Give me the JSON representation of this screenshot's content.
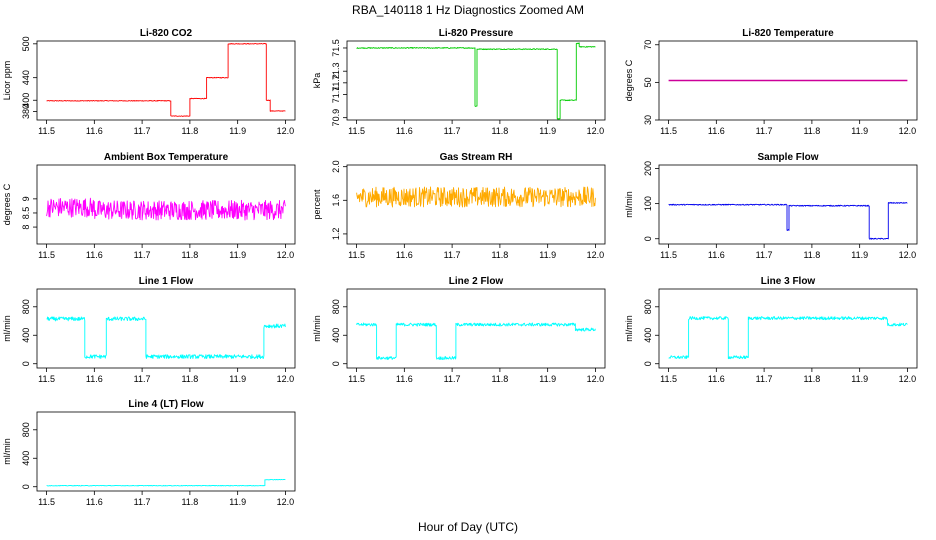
{
  "figure": {
    "title": "RBA_140118  1 Hz Diagnostics Zoomed AM",
    "xlabel": "Hour of Day (UTC)"
  },
  "chart_data": [
    {
      "type": "line",
      "title": "Li-820 CO2",
      "ylabel": "Licor ppm",
      "color": "#ff0000",
      "xlim": [
        11.48,
        12.02
      ],
      "ylim": [
        365,
        505
      ],
      "xticks": [
        "11.5",
        "11.6",
        "11.7",
        "11.8",
        "11.9",
        "12.0"
      ],
      "yticks": [
        "380",
        "400",
        "440",
        "500"
      ],
      "noise": 0.6,
      "segments": [
        {
          "x": [
            11.5,
            11.76
          ],
          "y": 399
        },
        {
          "x": [
            11.76,
            11.8
          ],
          "y": 372
        },
        {
          "x": [
            11.8,
            11.835
          ],
          "y": 403
        },
        {
          "x": [
            11.835,
            11.88
          ],
          "y": 440
        },
        {
          "x": [
            11.88,
            11.96
          ],
          "y": 500
        },
        {
          "x": [
            11.96,
            11.968
          ],
          "y": 400
        },
        {
          "x": [
            11.968,
            12.0
          ],
          "y": 381
        }
      ]
    },
    {
      "type": "line",
      "title": "Li-820 Pressure",
      "ylabel": "kPa",
      "color": "#00cc00",
      "xlim": [
        11.48,
        12.02
      ],
      "ylim": [
        70.88,
        71.56
      ],
      "xticks": [
        "11.5",
        "11.6",
        "11.7",
        "11.8",
        "11.9",
        "12.0"
      ],
      "yticks": [
        "70.9",
        "71.1",
        "71.2",
        "71.3",
        "71.5"
      ],
      "noise": 0.004,
      "segments": [
        {
          "x": [
            11.5,
            11.748
          ],
          "y": 71.5
        },
        {
          "x": [
            11.748,
            11.752
          ],
          "y": 71.0
        },
        {
          "x": [
            11.752,
            11.92
          ],
          "y": 71.49
        },
        {
          "x": [
            11.92,
            11.926
          ],
          "y": 70.89
        },
        {
          "x": [
            11.926,
            11.96
          ],
          "y": 71.05
        },
        {
          "x": [
            11.96,
            11.966
          ],
          "y": 71.54
        },
        {
          "x": [
            11.966,
            12.0
          ],
          "y": 71.51
        }
      ]
    },
    {
      "type": "line",
      "title": "Li-820 Temperature",
      "ylabel": "degrees C",
      "color": "#cc0099",
      "xlim": [
        11.48,
        12.02
      ],
      "ylim": [
        30,
        72
      ],
      "xticks": [
        "11.5",
        "11.6",
        "11.7",
        "11.8",
        "11.9",
        "12.0"
      ],
      "yticks": [
        "30",
        "50",
        "70"
      ],
      "noise": 0,
      "segments": [
        {
          "x": [
            11.5,
            12.0
          ],
          "y": 51
        }
      ]
    },
    {
      "type": "line",
      "title": "Ambient Box Temperature",
      "ylabel": "degrees C",
      "color": "#ff00ff",
      "xlim": [
        11.48,
        12.02
      ],
      "ylim": [
        7.4,
        10.2
      ],
      "xticks": [
        "11.5",
        "11.6",
        "11.7",
        "11.8",
        "11.9",
        "12.0"
      ],
      "yticks": [
        "8",
        "8.5",
        "9"
      ],
      "noise": 0.35,
      "segments": [
        {
          "x": [
            11.5,
            11.6
          ],
          "y": 8.7
        },
        {
          "x": [
            11.6,
            11.7
          ],
          "y": 8.6
        },
        {
          "x": [
            11.7,
            12.0
          ],
          "y": 8.6
        }
      ]
    },
    {
      "type": "line",
      "title": "Gas Stream RH",
      "ylabel": "percent",
      "color": "#ffaa00",
      "xlim": [
        11.48,
        12.02
      ],
      "ylim": [
        1.08,
        2.02
      ],
      "xticks": [
        "11.5",
        "11.6",
        "11.7",
        "11.8",
        "11.9",
        "12.0"
      ],
      "yticks": [
        "1.2",
        "1.6",
        "2.0"
      ],
      "noise": 0.12,
      "segments": [
        {
          "x": [
            11.5,
            12.0
          ],
          "y": 1.64
        }
      ]
    },
    {
      "type": "line",
      "title": "Sample Flow",
      "ylabel": "ml/min",
      "color": "#0000ee",
      "xlim": [
        11.48,
        12.02
      ],
      "ylim": [
        -15,
        210
      ],
      "xticks": [
        "11.5",
        "11.6",
        "11.7",
        "11.8",
        "11.9",
        "12.0"
      ],
      "yticks": [
        "0",
        "100",
        "200"
      ],
      "noise": 1.5,
      "segments": [
        {
          "x": [
            11.5,
            11.748
          ],
          "y": 97
        },
        {
          "x": [
            11.748,
            11.752
          ],
          "y": 25
        },
        {
          "x": [
            11.752,
            11.92
          ],
          "y": 94
        },
        {
          "x": [
            11.92,
            11.96
          ],
          "y": 0
        },
        {
          "x": [
            11.96,
            12.0
          ],
          "y": 102
        }
      ]
    },
    {
      "type": "line",
      "title": "Line 1 Flow",
      "ylabel": "ml/min",
      "color": "#00ffff",
      "xlim": [
        11.48,
        12.02
      ],
      "ylim": [
        -60,
        1050
      ],
      "xticks": [
        "11.5",
        "11.6",
        "11.7",
        "11.8",
        "11.9",
        "12.0"
      ],
      "yticks": [
        "0",
        "400",
        "800"
      ],
      "noise": 28,
      "segments": [
        {
          "x": [
            11.5,
            11.58
          ],
          "y": 630
        },
        {
          "x": [
            11.58,
            11.625
          ],
          "y": 100
        },
        {
          "x": [
            11.625,
            11.708
          ],
          "y": 630
        },
        {
          "x": [
            11.708,
            11.955
          ],
          "y": 100
        },
        {
          "x": [
            11.955,
            12.0
          ],
          "y": 530
        }
      ]
    },
    {
      "type": "line",
      "title": "Line 2 Flow",
      "ylabel": "ml/min",
      "color": "#00ffff",
      "xlim": [
        11.48,
        12.02
      ],
      "ylim": [
        -60,
        1050
      ],
      "xticks": [
        "11.5",
        "11.6",
        "11.7",
        "11.8",
        "11.9",
        "12.0"
      ],
      "yticks": [
        "0",
        "400",
        "800"
      ],
      "noise": 22,
      "segments": [
        {
          "x": [
            11.5,
            11.542
          ],
          "y": 550
        },
        {
          "x": [
            11.542,
            11.583
          ],
          "y": 80
        },
        {
          "x": [
            11.583,
            11.667
          ],
          "y": 550
        },
        {
          "x": [
            11.667,
            11.708
          ],
          "y": 80
        },
        {
          "x": [
            11.708,
            11.958
          ],
          "y": 550
        },
        {
          "x": [
            11.958,
            12.0
          ],
          "y": 480
        }
      ]
    },
    {
      "type": "line",
      "title": "Line 3 Flow",
      "ylabel": "ml/min",
      "color": "#00ffff",
      "xlim": [
        11.48,
        12.02
      ],
      "ylim": [
        -60,
        1050
      ],
      "xticks": [
        "11.5",
        "11.6",
        "11.7",
        "11.8",
        "11.9",
        "12.0"
      ],
      "yticks": [
        "0",
        "400",
        "800"
      ],
      "noise": 22,
      "segments": [
        {
          "x": [
            11.5,
            11.542
          ],
          "y": 90
        },
        {
          "x": [
            11.542,
            11.625
          ],
          "y": 640
        },
        {
          "x": [
            11.625,
            11.667
          ],
          "y": 90
        },
        {
          "x": [
            11.667,
            11.958
          ],
          "y": 640
        },
        {
          "x": [
            11.958,
            12.0
          ],
          "y": 550
        }
      ]
    },
    {
      "type": "line",
      "title": "Line 4 (LT) Flow",
      "ylabel": "ml/min",
      "color": "#00ffff",
      "xlim": [
        11.48,
        12.02
      ],
      "ylim": [
        -60,
        1050
      ],
      "xticks": [
        "11.5",
        "11.6",
        "11.7",
        "11.8",
        "11.9",
        "12.0"
      ],
      "yticks": [
        "0",
        "400",
        "800"
      ],
      "noise": 4,
      "segments": [
        {
          "x": [
            11.5,
            11.957
          ],
          "y": 15
        },
        {
          "x": [
            11.957,
            12.0
          ],
          "y": 100
        }
      ]
    }
  ]
}
